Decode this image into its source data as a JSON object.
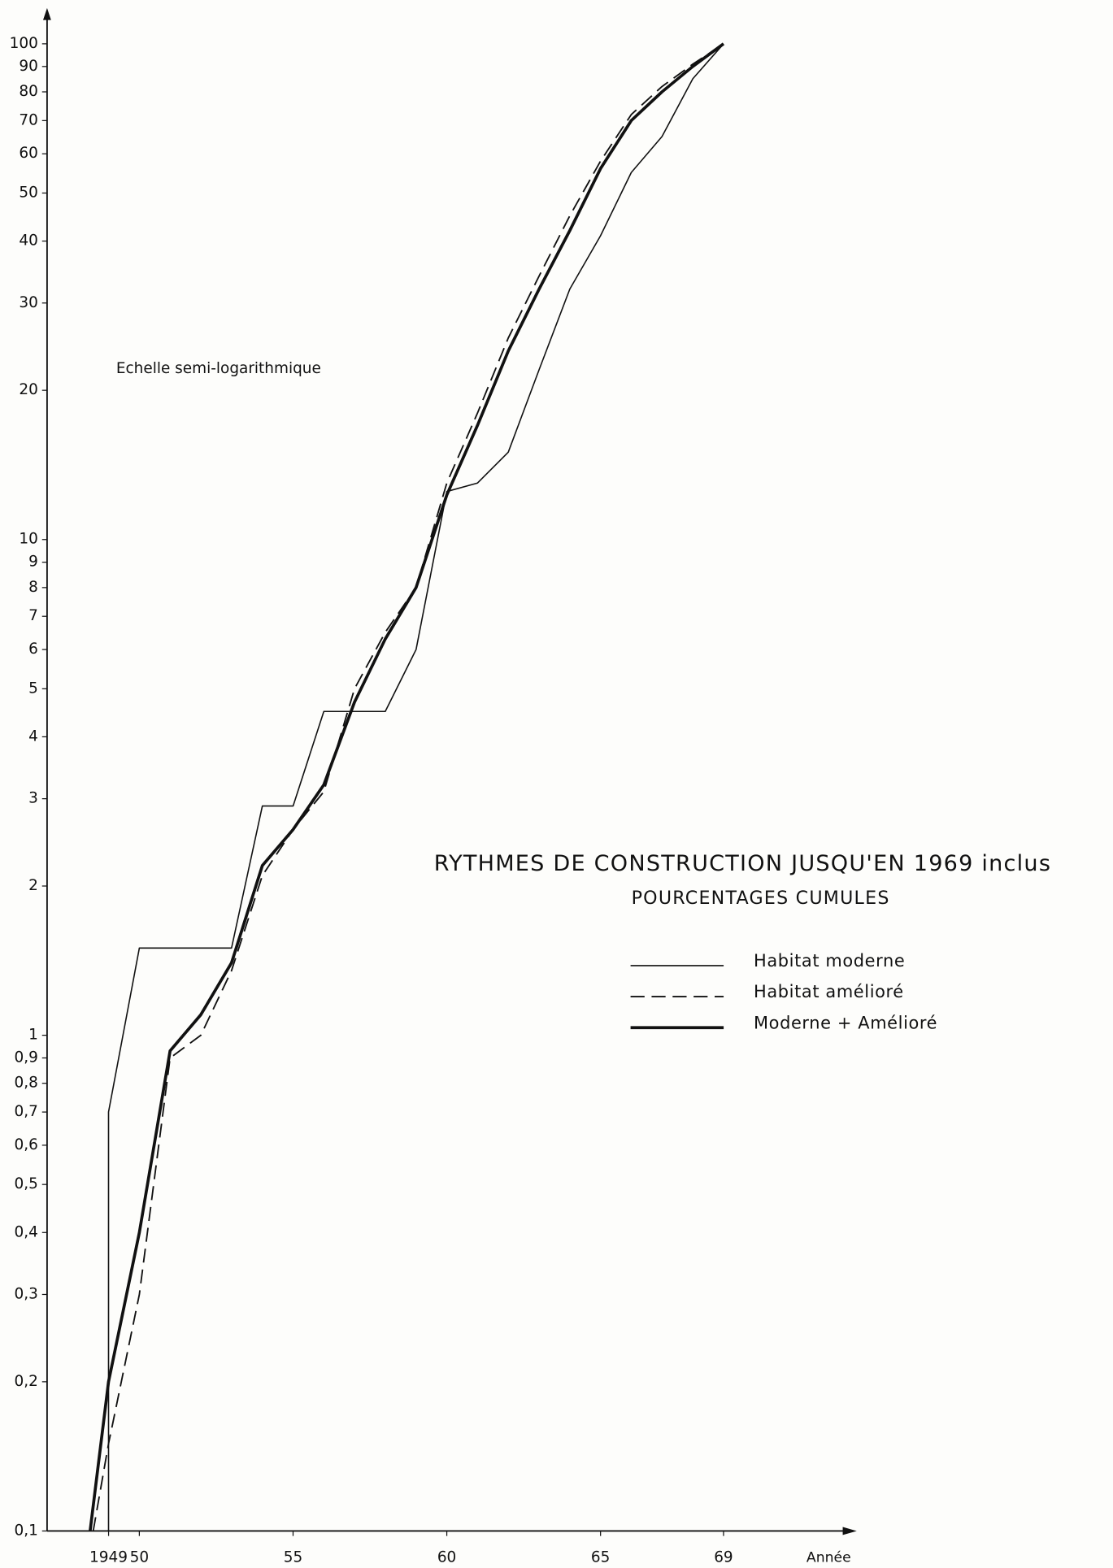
{
  "chart_data": {
    "type": "line",
    "log_scale_y": true,
    "title": "RYTHMES DE CONSTRUCTION JUSQU'EN 1969 inclus",
    "subtitle": "POURCENTAGES CUMULES",
    "annotation": "Echelle semi-logarithmique",
    "x_label": "Année",
    "xlim": [
      1947,
      1973.3
    ],
    "ylim": [
      0.1,
      117
    ],
    "xticks": [
      {
        "value": 1949,
        "label": "1949"
      },
      {
        "value": 1950,
        "label": "50"
      },
      {
        "value": 1955,
        "label": "55"
      },
      {
        "value": 1960,
        "label": "60"
      },
      {
        "value": 1965,
        "label": "65"
      },
      {
        "value": 1969,
        "label": "69"
      }
    ],
    "yticks": [
      {
        "value": 0.1,
        "label": "0,1"
      },
      {
        "value": 0.2,
        "label": "0,2"
      },
      {
        "value": 0.3,
        "label": "0,3"
      },
      {
        "value": 0.4,
        "label": "0,4"
      },
      {
        "value": 0.5,
        "label": "0,5"
      },
      {
        "value": 0.6,
        "label": "0,6"
      },
      {
        "value": 0.7,
        "label": "0,7"
      },
      {
        "value": 0.8,
        "label": "0,8"
      },
      {
        "value": 0.9,
        "label": "0,9"
      },
      1,
      2,
      3,
      4,
      5,
      6,
      7,
      8,
      9,
      10,
      20,
      30,
      40,
      50,
      60,
      70,
      80,
      90,
      100
    ],
    "series": [
      {
        "name": "Habitat moderne",
        "color": "#111111",
        "width": 1.3,
        "dash": false,
        "x": [
          1949,
          1949,
          1950,
          1951,
          1952,
          1953,
          1954,
          1955,
          1956,
          1957,
          1958,
          1959,
          1960,
          1961,
          1962,
          1963,
          1964,
          1965,
          1966,
          1967,
          1968,
          1969
        ],
        "values": [
          0.1,
          0.7,
          1.5,
          1.5,
          1.5,
          1.5,
          2.9,
          2.9,
          4.5,
          4.5,
          4.5,
          6,
          12.5,
          13,
          15,
          22,
          32,
          41,
          55,
          65,
          85,
          100
        ]
      },
      {
        "name": "Habitat amélioré",
        "color": "#111111",
        "width": 1.5,
        "dash": true,
        "x": [
          1948.5,
          1949,
          1950,
          1951,
          1952,
          1953,
          1954,
          1955,
          1956,
          1957,
          1958,
          1959,
          1960,
          1961,
          1962,
          1963,
          1964,
          1965,
          1966,
          1967,
          1968,
          1969
        ],
        "values": [
          0.1,
          0.15,
          0.3,
          0.9,
          1.0,
          1.35,
          2.1,
          2.6,
          3.1,
          5,
          6.5,
          8,
          13,
          18,
          25.5,
          34,
          45,
          58,
          72,
          82,
          91,
          100
        ]
      },
      {
        "name": "Moderne + Amélioré",
        "color": "#111111",
        "width": 3,
        "dash": false,
        "x": [
          1948.4,
          1949,
          1950,
          1951,
          1952,
          1953,
          1954,
          1955,
          1956,
          1957,
          1958,
          1959,
          1960,
          1961,
          1962,
          1963,
          1964,
          1965,
          1966,
          1967,
          1968,
          1969
        ],
        "values": [
          0.1,
          0.2,
          0.4,
          0.93,
          1.1,
          1.4,
          2.2,
          2.6,
          3.2,
          4.7,
          6.3,
          8,
          12.3,
          17,
          24,
          32,
          42,
          56,
          70,
          80,
          90,
          100
        ]
      }
    ]
  }
}
